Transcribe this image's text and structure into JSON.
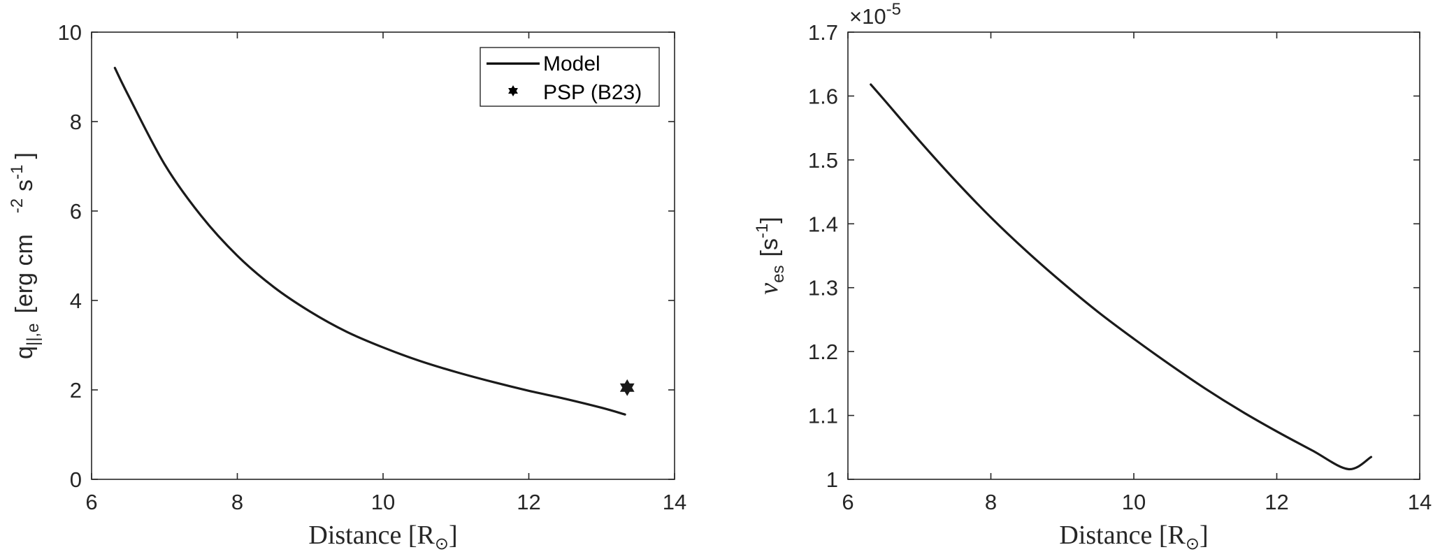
{
  "chart_data": [
    {
      "type": "line",
      "xlabel_main": "Distance [R",
      "xlabel_sub": "⊙",
      "xlabel_close": "]",
      "ylabel_q": "q",
      "ylabel_sub": "||,e",
      "ylabel_unit_a": "[erg cm",
      "ylabel_sup_a": "-2",
      "ylabel_unit_b": "s",
      "ylabel_sup_b": "-1",
      "ylabel_close": "]",
      "xlim": [
        6,
        14
      ],
      "ylim": [
        0,
        10
      ],
      "xticks": [
        6,
        8,
        10,
        12,
        14
      ],
      "yticks": [
        0,
        2,
        4,
        6,
        8,
        10
      ],
      "grid": false,
      "legend_position": "top-right",
      "legend": [
        {
          "label": "Model",
          "marker": "line"
        },
        {
          "label": "PSP (B23)",
          "marker": "hexagram"
        }
      ],
      "series": [
        {
          "name": "Model",
          "x": [
            6.32,
            6.5,
            7.0,
            7.5,
            8.0,
            8.5,
            9.0,
            9.5,
            10.0,
            10.5,
            11.0,
            11.5,
            12.0,
            12.5,
            13.0,
            13.32
          ],
          "y": [
            9.2,
            8.6,
            7.05,
            5.9,
            5.0,
            4.3,
            3.75,
            3.3,
            2.95,
            2.65,
            2.4,
            2.18,
            1.98,
            1.8,
            1.6,
            1.45
          ]
        }
      ],
      "points": [
        {
          "name": "PSP (B23)",
          "x": 13.35,
          "y": 2.05
        }
      ]
    },
    {
      "type": "line",
      "xlabel_main": "Distance [R",
      "xlabel_sub": "⊙",
      "xlabel_close": "]",
      "ylabel_nu": "ν",
      "ylabel_sub": "es",
      "ylabel_unit": "[s",
      "ylabel_sup": "-1",
      "ylabel_close": "]",
      "multiplier_base": "×10",
      "multiplier_exp": "-5",
      "xlim": [
        6,
        14
      ],
      "ylim": [
        1.0,
        1.7
      ],
      "xticks": [
        6,
        8,
        10,
        12,
        14
      ],
      "yticks": [
        1,
        1.1,
        1.2,
        1.3,
        1.4,
        1.5,
        1.6,
        1.7
      ],
      "grid": false,
      "series": [
        {
          "name": "Model",
          "x": [
            6.32,
            6.5,
            7.0,
            7.5,
            8.0,
            8.5,
            9.0,
            9.5,
            10.0,
            10.5,
            11.0,
            11.5,
            12.0,
            12.5,
            13.0,
            13.32
          ],
          "y": [
            1.618,
            1.595,
            1.53,
            1.468,
            1.41,
            1.357,
            1.308,
            1.262,
            1.22,
            1.18,
            1.142,
            1.107,
            1.075,
            1.045,
            1.016,
            1.035
          ]
        }
      ]
    }
  ]
}
